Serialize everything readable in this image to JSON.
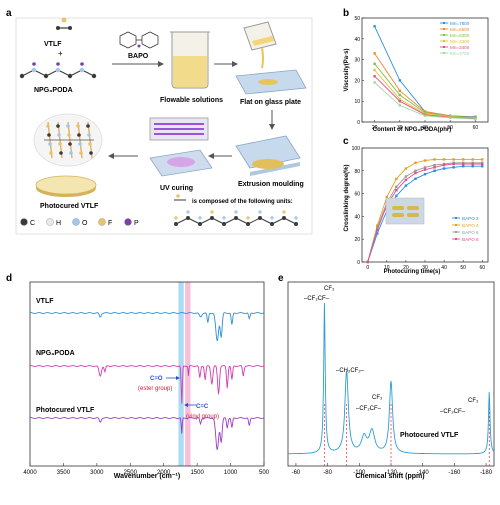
{
  "panels": {
    "a": {
      "letter": "a",
      "vtlf": "VTLF",
      "plus": "+",
      "npg": "NPG₃PODA",
      "bapo": "BAPO",
      "flowable": "Flowable solutions",
      "flat": "Flat on glass plate",
      "extrusion": "Extrusion moulding",
      "uv": "UV curing",
      "photocured": "Photocured VTLF",
      "composed": "is composed of the following units:",
      "legend": [
        {
          "symbol": "C",
          "color": "#3a3a3a"
        },
        {
          "symbol": "H",
          "color": "#e8e8e8"
        },
        {
          "symbol": "O",
          "color": "#9fc9ec"
        },
        {
          "symbol": "F",
          "color": "#e9c36a"
        },
        {
          "symbol": "P",
          "color": "#7b3fb0"
        }
      ]
    },
    "b": {
      "letter": "b",
      "ylabel": "Viscosity(Pa·s)",
      "xlabel": "Content of NPG₃PODA(phr)"
    },
    "c": {
      "letter": "c",
      "ylabel": "Crosslinking degree(%)",
      "xlabel": "Photocuring time(s)"
    },
    "d": {
      "letter": "d",
      "xlabel": "Wavenumber (cm⁻¹)",
      "labels": {
        "vtlf": "VTLF",
        "npg": "NPG₃PODA",
        "photocured": "Photocured VTLF",
        "co": "C=O",
        "ester": "(ester group)",
        "cc": "C=C",
        "vinyl": "(vinyl group)"
      }
    },
    "e": {
      "letter": "e",
      "xlabel": "Chemical shift (ppm)",
      "sample": "Photocured VTLF",
      "annotations": [
        "CF₃",
        "–CF₂CF–",
        "–CH₂CF₂–",
        "CF₃",
        "–CF₂CF–",
        "CF₃",
        "–CF₂CF–"
      ]
    }
  },
  "chart_data": [
    {
      "type": "line",
      "panel": "b",
      "xlabel": "Content of NPG₃PODA(phr)",
      "ylabel": "Viscosity(Pa·s)",
      "xlim": [
        15,
        65
      ],
      "ylim": [
        0,
        50
      ],
      "xticks": [
        20,
        30,
        40,
        50,
        60
      ],
      "yticks": [
        0,
        10,
        20,
        30,
        40,
        50
      ],
      "x": [
        20,
        30,
        40,
        50,
        60
      ],
      "legend_position": "top-right",
      "series": [
        {
          "name": "Mn=7800",
          "color": "#2b8fe0",
          "values": [
            46,
            20,
            5,
            3,
            2.5
          ]
        },
        {
          "name": "Mn=6500",
          "color": "#f08a2c",
          "values": [
            33,
            15,
            5,
            3,
            2.2
          ]
        },
        {
          "name": "Mn=5300",
          "color": "#7cc24a",
          "values": [
            28,
            13,
            4.5,
            2.8,
            2
          ]
        },
        {
          "name": "Mn=4300",
          "color": "#e8c230",
          "values": [
            25,
            11,
            4,
            2.5,
            1.8
          ]
        },
        {
          "name": "Mn=3400",
          "color": "#e05090",
          "values": [
            22,
            10,
            3.5,
            2.2,
            1.6
          ]
        },
        {
          "name": "Mn=2700",
          "color": "#a0d8a0",
          "values": [
            19,
            8,
            3,
            2,
            1.4
          ]
        }
      ]
    },
    {
      "type": "line",
      "panel": "c",
      "xlabel": "Photocuring time(s)",
      "ylabel": "Crosslinking degree(%)",
      "xlim": [
        -3,
        63
      ],
      "ylim": [
        0,
        100
      ],
      "xticks": [
        0,
        10,
        20,
        30,
        40,
        50,
        60
      ],
      "yticks": [
        0,
        20,
        40,
        60,
        80,
        100
      ],
      "x": [
        0,
        5,
        10,
        15,
        20,
        25,
        30,
        35,
        40,
        45,
        50,
        55,
        60
      ],
      "legend_position": "bottom-right",
      "series": [
        {
          "name": "BAPO 2",
          "color": "#2b8fe0",
          "values": [
            0,
            25,
            45,
            58,
            67,
            73,
            77,
            80,
            82,
            83,
            84,
            84,
            84
          ]
        },
        {
          "name": "BAPO 4",
          "color": "#e8a020",
          "values": [
            0,
            32,
            57,
            73,
            82,
            87,
            89,
            90,
            90,
            90,
            90,
            90,
            90
          ]
        },
        {
          "name": "BAPO 6",
          "color": "#9a9a9a",
          "values": [
            0,
            30,
            52,
            66,
            75,
            80,
            83,
            85,
            86,
            87,
            87,
            87,
            87
          ]
        },
        {
          "name": "BAPO 8",
          "color": "#e05090",
          "values": [
            0,
            28,
            50,
            63,
            72,
            78,
            81,
            83,
            85,
            86,
            86,
            86,
            86
          ]
        }
      ]
    },
    {
      "type": "line",
      "panel": "d",
      "xlabel": "Wavenumber (cm⁻¹)",
      "xlim": [
        4000,
        500
      ],
      "xticks": [
        4000,
        3500,
        3000,
        2500,
        2000,
        1500,
        1000,
        500
      ],
      "highlight_bands": [
        {
          "from": 1780,
          "to": 1700,
          "color": "#8fd0f0"
        },
        {
          "from": 1680,
          "to": 1600,
          "color": "#f5a8d0"
        }
      ],
      "series": [
        {
          "name": "VTLF",
          "color": "#2a8fd8"
        },
        {
          "name": "NPG₃PODA",
          "color": "#d23ab0"
        },
        {
          "name": "Photocured VTLF",
          "color": "#9a3cc0"
        }
      ]
    },
    {
      "type": "line",
      "panel": "e",
      "xlabel": "Chemical shift (ppm)",
      "xlim": [
        -55,
        -185
      ],
      "xticks": [
        -60,
        -80,
        -100,
        -120,
        -140,
        -160,
        -180
      ],
      "peaks_ppm": [
        -78,
        -92,
        -120,
        -182
      ],
      "series": [
        {
          "name": "Photocured VTLF",
          "color": "#2a9fd8"
        }
      ]
    }
  ]
}
